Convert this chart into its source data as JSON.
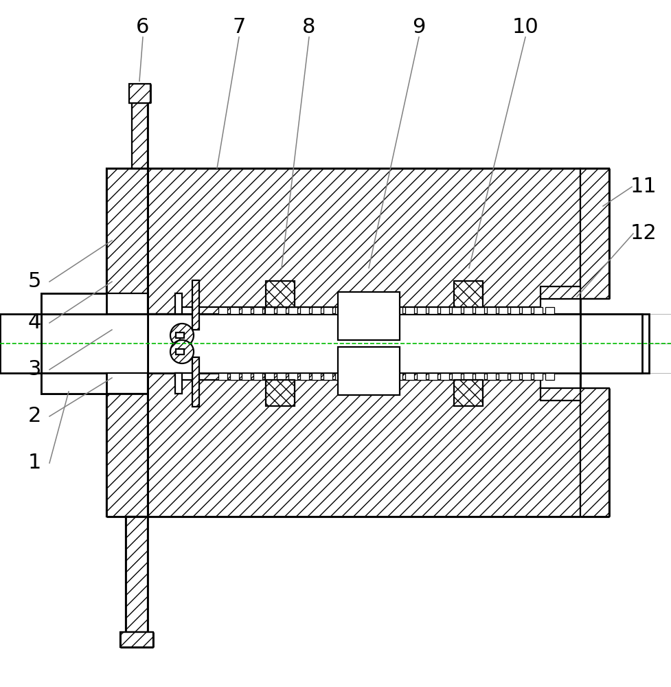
{
  "bg_color": "#ffffff",
  "lc": "#000000",
  "ann_color": "#808080",
  "cl_color": "#00bb00",
  "fs": 22,
  "lw": 1.6,
  "tlw": 2.0,
  "alw": 1.1
}
